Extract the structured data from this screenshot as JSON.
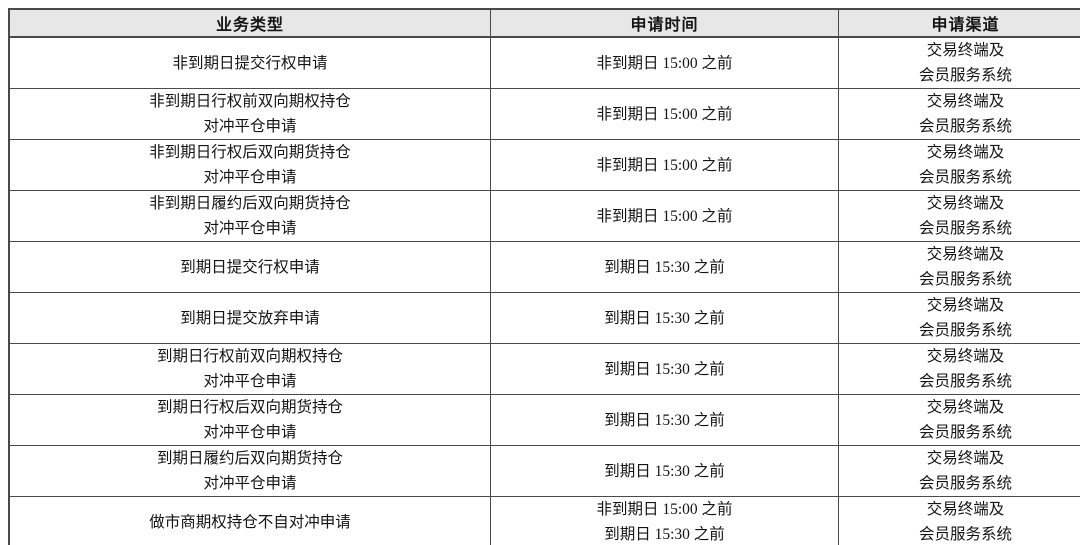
{
  "colors": {
    "header_bg": "#e7e7e7",
    "border": "#4a4a4a",
    "text": "#141414",
    "page_bg": "#ffffff"
  },
  "table": {
    "columns": [
      {
        "label": "业务类型"
      },
      {
        "label": "申请时间"
      },
      {
        "label": "申请渠道"
      }
    ],
    "rows": [
      {
        "type": [
          "非到期日提交行权申请"
        ],
        "time": [
          "非到期日 15:00 之前"
        ],
        "channel": [
          "交易终端及",
          "会员服务系统"
        ]
      },
      {
        "type": [
          "非到期日行权前双向期权持仓",
          "对冲平仓申请"
        ],
        "time": [
          "非到期日 15:00 之前"
        ],
        "channel": [
          "交易终端及",
          "会员服务系统"
        ]
      },
      {
        "type": [
          "非到期日行权后双向期货持仓",
          "对冲平仓申请"
        ],
        "time": [
          "非到期日 15:00 之前"
        ],
        "channel": [
          "交易终端及",
          "会员服务系统"
        ]
      },
      {
        "type": [
          "非到期日履约后双向期货持仓",
          "对冲平仓申请"
        ],
        "time": [
          "非到期日 15:00 之前"
        ],
        "channel": [
          "交易终端及",
          "会员服务系统"
        ]
      },
      {
        "type": [
          "到期日提交行权申请"
        ],
        "time": [
          "到期日 15:30 之前"
        ],
        "channel": [
          "交易终端及",
          "会员服务系统"
        ]
      },
      {
        "type": [
          "到期日提交放弃申请"
        ],
        "time": [
          "到期日 15:30 之前"
        ],
        "channel": [
          "交易终端及",
          "会员服务系统"
        ]
      },
      {
        "type": [
          "到期日行权前双向期权持仓",
          "对冲平仓申请"
        ],
        "time": [
          "到期日 15:30 之前"
        ],
        "channel": [
          "交易终端及",
          "会员服务系统"
        ]
      },
      {
        "type": [
          "到期日行权后双向期货持仓",
          "对冲平仓申请"
        ],
        "time": [
          "到期日 15:30 之前"
        ],
        "channel": [
          "交易终端及",
          "会员服务系统"
        ]
      },
      {
        "type": [
          "到期日履约后双向期货持仓",
          "对冲平仓申请"
        ],
        "time": [
          "到期日 15:30 之前"
        ],
        "channel": [
          "交易终端及",
          "会员服务系统"
        ]
      },
      {
        "type": [
          "做市商期权持仓不自对冲申请"
        ],
        "time": [
          "非到期日 15:00 之前",
          "到期日 15:30 之前"
        ],
        "channel": [
          "交易终端及",
          "会员服务系统"
        ]
      }
    ]
  }
}
